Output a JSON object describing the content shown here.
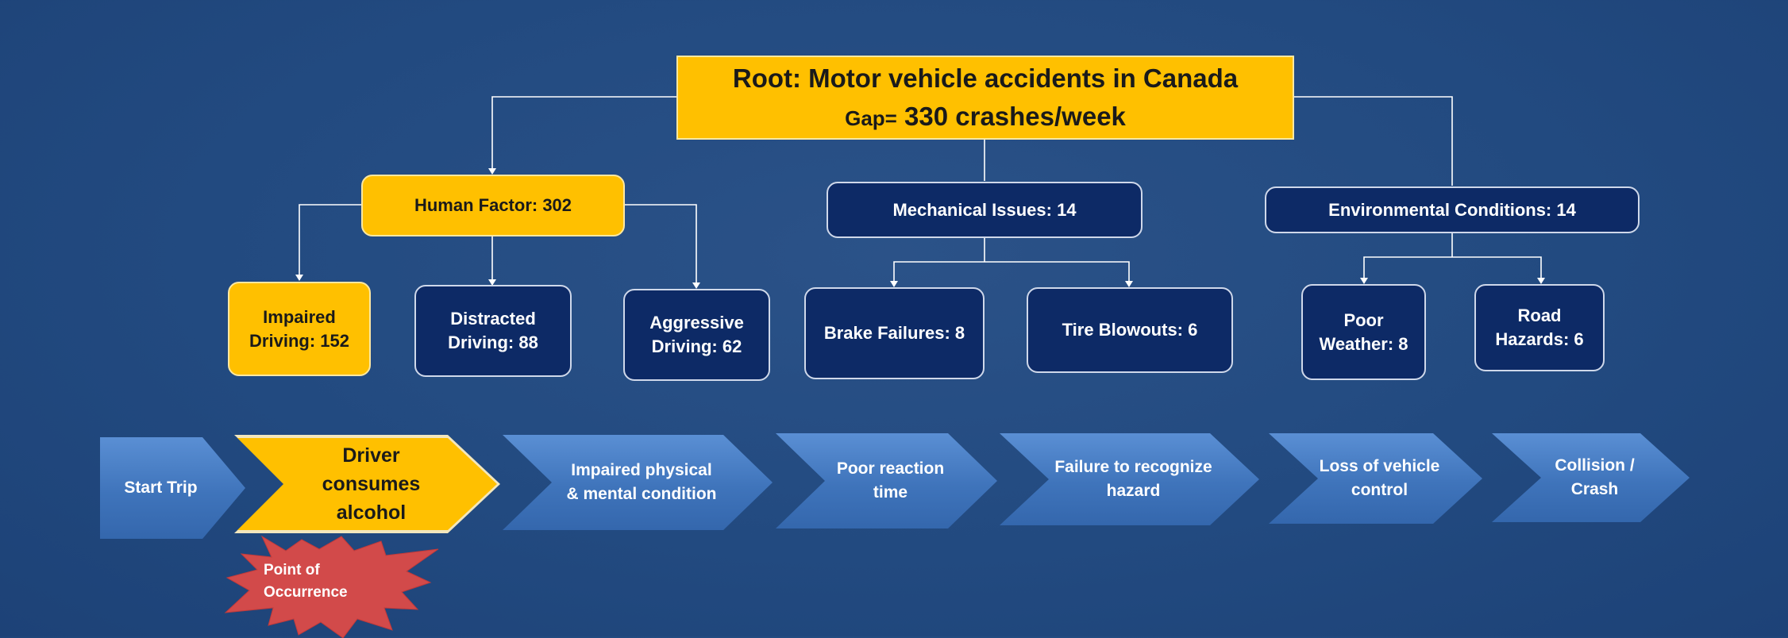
{
  "root": {
    "title": "Root: Motor vehicle accidents in Canada",
    "gap_prefix": "Gap=",
    "gap_value": "330 crashes/week"
  },
  "categories": {
    "human": "Human Factor: 302",
    "mechanical": "Mechanical Issues: 14",
    "environmental": "Environmental Conditions: 14"
  },
  "causes": {
    "impaired_l1": "Impaired",
    "impaired_l2": "Driving: 152",
    "distracted_l1": "Distracted",
    "distracted_l2": "Driving: 88",
    "aggressive_l1": "Aggressive",
    "aggressive_l2": "Driving: 62",
    "brake": "Brake Failures: 8",
    "tire": "Tire Blowouts: 6",
    "weather_l1": "Poor",
    "weather_l2": "Weather: 8",
    "road_l1": "Road",
    "road_l2": "Hazards: 6"
  },
  "process": {
    "s1": "Start Trip",
    "s2_l1": "Driver",
    "s2_l2": "consumes",
    "s2_l3": "alcohol",
    "s3_l1": "Impaired physical",
    "s3_l2": "& mental condition",
    "s4_l1": "Poor reaction",
    "s4_l2": "time",
    "s5_l1": "Failure to recognize",
    "s5_l2": "hazard",
    "s6_l1": "Loss of vehicle",
    "s6_l2": "control",
    "s7_l1": "Collision /",
    "s7_l2": "Crash"
  },
  "callout": {
    "l1": "Point of",
    "l2": "Occurrence"
  },
  "colors": {
    "background": "#224a80",
    "highlight": "#ffc000",
    "node": "#0d2a66",
    "step": "#3f74bb",
    "burst": "#d24a4a"
  }
}
